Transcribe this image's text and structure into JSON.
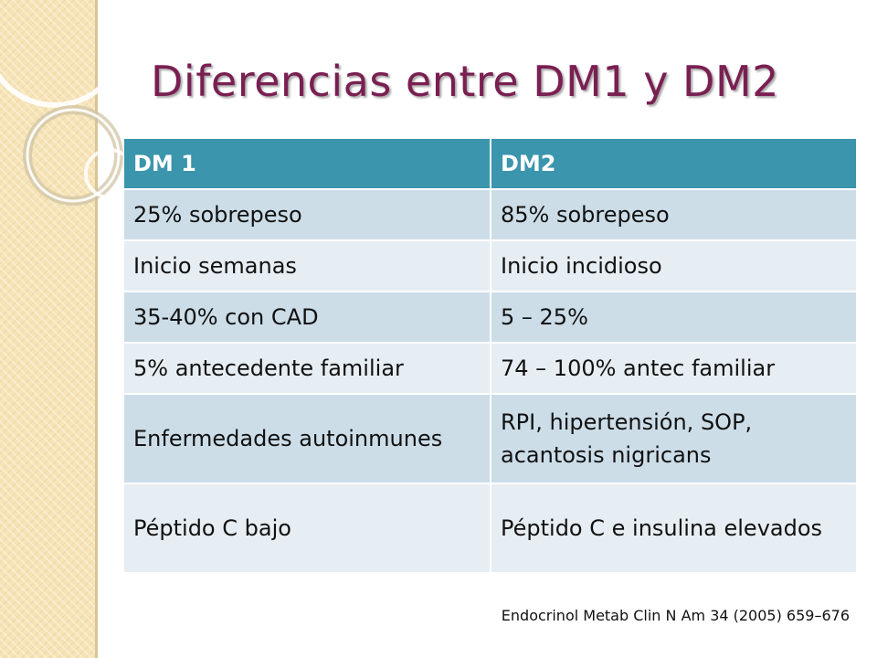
{
  "slide": {
    "title": "Diferencias entre DM1 y DM2",
    "citation": "Endocrinol Metab Clin N Am 34 (2005) 659–676"
  },
  "table": {
    "headers": [
      "DM 1",
      "DM2"
    ],
    "rows": [
      [
        "25% sobrepeso",
        "85% sobrepeso"
      ],
      [
        "Inicio semanas",
        "Inicio incidioso"
      ],
      [
        "35-40% con CAD",
        "5 – 25%"
      ],
      [
        "5% antecedente familiar",
        "74 – 100% antec familiar"
      ],
      [
        "Enfermedades autoinmunes",
        "RPI, hipertensión, SOP, acantosis nigricans"
      ],
      [
        "Péptido C bajo",
        "Péptido C e insulina elevados"
      ]
    ]
  },
  "colors": {
    "title": "#7a1f52",
    "header_bg": "#3a95ad",
    "row_odd": "#ccdde8",
    "row_even": "#e7eef3",
    "side_band": "#f6e3b6"
  }
}
